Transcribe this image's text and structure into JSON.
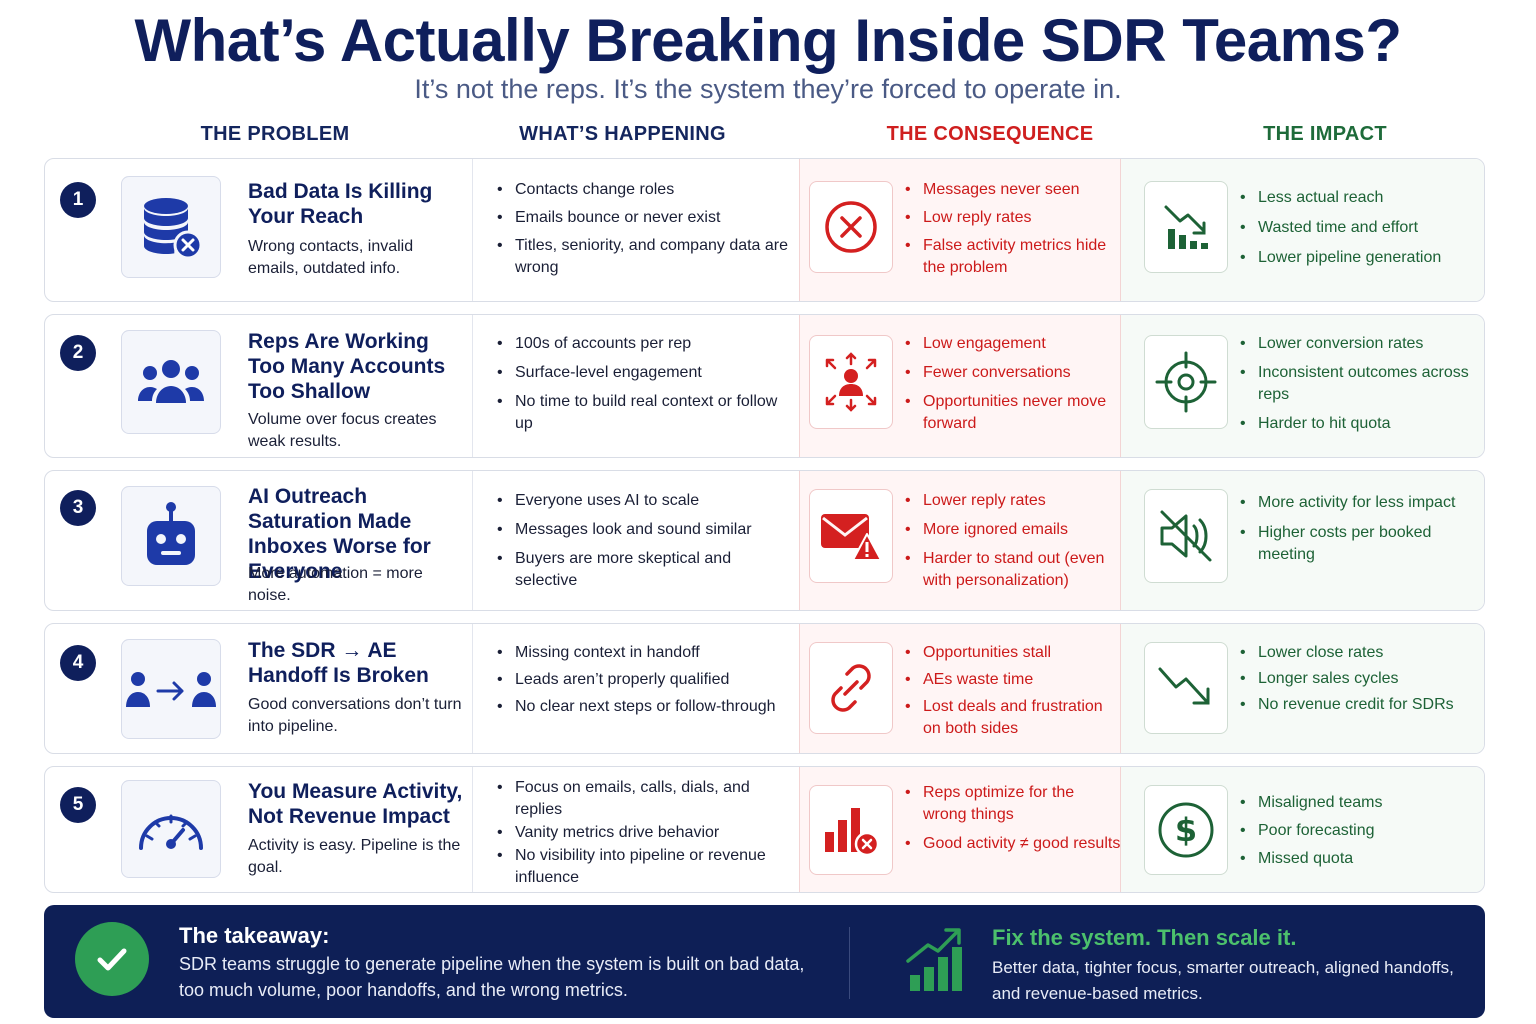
{
  "header": {
    "title": "What’s Actually Breaking Inside SDR Teams?",
    "subtitle": "It’s not the reps. It’s the system they’re forced to operate in."
  },
  "columns": {
    "problem": "THE PROBLEM",
    "happening": "WHAT’S HAPPENING",
    "consequence": "THE CONSEQUENCE",
    "impact": "THE IMPACT"
  },
  "rows": [
    {
      "number": "1",
      "title": "Bad Data Is Killing Your Reach",
      "desc": "Wrong contacts, invalid emails, outdated info.",
      "problem_icon": "database-error-icon",
      "happening": [
        "Contacts change roles",
        "Emails bounce or never exist",
        "Titles, seniority, and company data are wrong"
      ],
      "consequence_icon": "x-circle-icon",
      "consequence": [
        "Messages never seen",
        "Low reply rates",
        "False activity metrics hide the problem"
      ],
      "impact_icon": "declining-chart-icon",
      "impact": [
        "Less actual reach",
        "Wasted time and effort",
        "Lower pipeline generation"
      ]
    },
    {
      "number": "2",
      "title": "Reps Are Working Too Many Accounts Too Shallow",
      "desc": "Volume over focus creates weak results.",
      "problem_icon": "team-icon",
      "happening": [
        "100s of accounts per rep",
        "Surface-level engagement",
        "No time to build real context or follow up"
      ],
      "consequence_icon": "scattered-person-icon",
      "consequence": [
        "Low engagement",
        "Fewer conversations",
        "Opportunities never move forward"
      ],
      "impact_icon": "crosshair-icon",
      "impact": [
        "Lower conversion rates",
        "Inconsistent outcomes across reps",
        "Harder to hit quota"
      ]
    },
    {
      "number": "3",
      "title": "AI Outreach Saturation Made Inboxes Worse for Everyone",
      "desc": "More automation = more noise.",
      "problem_icon": "robot-icon",
      "happening": [
        "Everyone uses AI to scale",
        "Messages look and sound similar",
        "Buyers are more skeptical and selective"
      ],
      "consequence_icon": "email-alert-icon",
      "consequence": [
        "Lower reply rates",
        "More ignored emails",
        "Harder to stand out (even with personalization)"
      ],
      "impact_icon": "muted-speaker-icon",
      "impact": [
        "More activity for less impact",
        "Higher costs per booked meeting"
      ]
    },
    {
      "number": "4",
      "title": "The SDR → AE Handoff Is Broken",
      "desc": "Good conversations don’t turn into pipeline.",
      "problem_icon": "handoff-icon",
      "happening": [
        "Missing context in handoff",
        "Leads aren’t properly qualified",
        "No clear next steps or follow-through"
      ],
      "consequence_icon": "broken-link-icon",
      "consequence": [
        "Opportunities stall",
        "AEs waste time",
        "Lost deals and frustration on both sides"
      ],
      "impact_icon": "trend-down-icon",
      "impact": [
        "Lower close rates",
        "Longer sales cycles",
        "No revenue credit for SDRs"
      ]
    },
    {
      "number": "5",
      "title": "You Measure Activity, Not Revenue Impact",
      "desc": "Activity is easy. Pipeline is the goal.",
      "problem_icon": "gauge-icon",
      "happening": [
        "Focus on emails, calls, dials, and replies",
        "Vanity metrics drive behavior",
        "No visibility into pipeline or revenue influence"
      ],
      "consequence_icon": "bar-chart-error-icon",
      "consequence": [
        "Reps optimize for the wrong things",
        "Good activity ≠ good results"
      ],
      "impact_icon": "dollar-icon",
      "impact": [
        "Misaligned teams",
        "Poor forecasting",
        "Missed quota"
      ]
    }
  ],
  "footer": {
    "takeaway_title": "The takeaway:",
    "takeaway_body": "SDR teams struggle to generate pipeline when the system is built on bad data, too much volume, poor handoffs, and the wrong metrics.",
    "fix_title": "Fix the system. Then scale it.",
    "fix_body": "Better data, tighter focus, smarter outreach, aligned handoffs, and revenue-based metrics."
  },
  "colors": {
    "navy": "#0f1f5c",
    "red": "#cc1a1a",
    "green": "#1d6236",
    "footer_bg": "#0e1f56"
  }
}
